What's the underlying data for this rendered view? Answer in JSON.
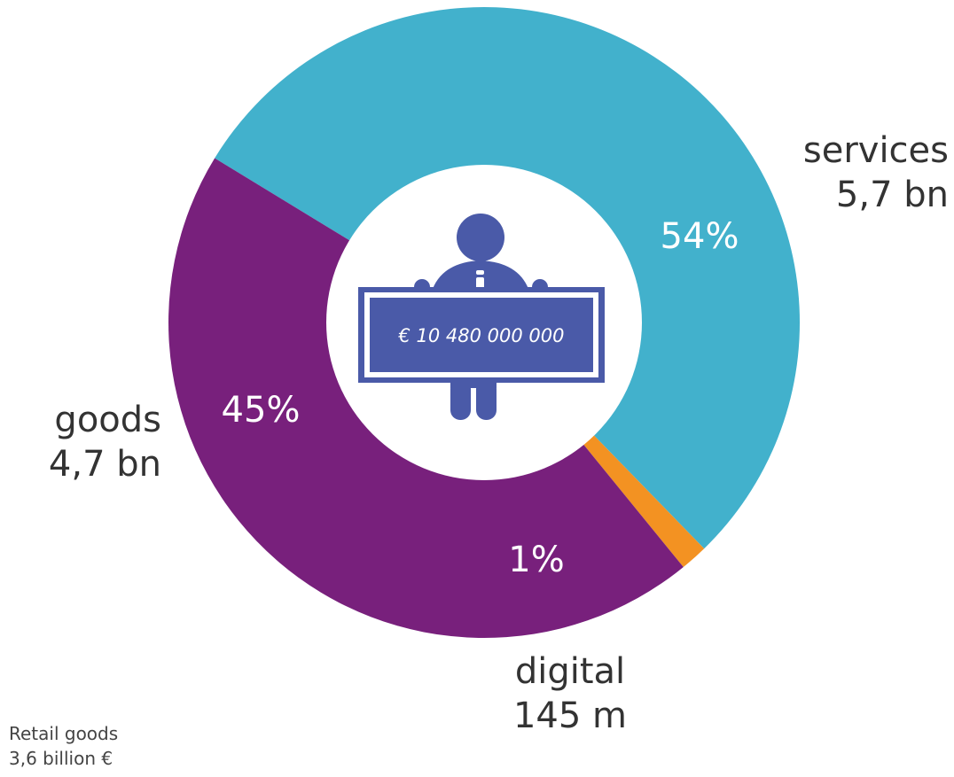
{
  "chart_data": {
    "type": "pie",
    "variant": "donut",
    "total_label": "€ 10 480 000 000",
    "slices": [
      {
        "name": "services",
        "amount_label": "5,7 bn",
        "percent": 54,
        "percent_label": "54%",
        "color": "#42b1cc"
      },
      {
        "name": "digital",
        "amount_label": "145 m",
        "percent": 1.4,
        "percent_label": "1%",
        "color": "#f39222"
      },
      {
        "name": "goods",
        "amount_label": "4,7 bn",
        "percent": 44.6,
        "percent_label": "45%",
        "color": "#78207c"
      }
    ],
    "center_icon": "person-holding-sign-icon",
    "center_icon_color": "#4a5aa8"
  },
  "footnote": {
    "line1": "Retail goods",
    "line2": "3,6 billion €"
  }
}
